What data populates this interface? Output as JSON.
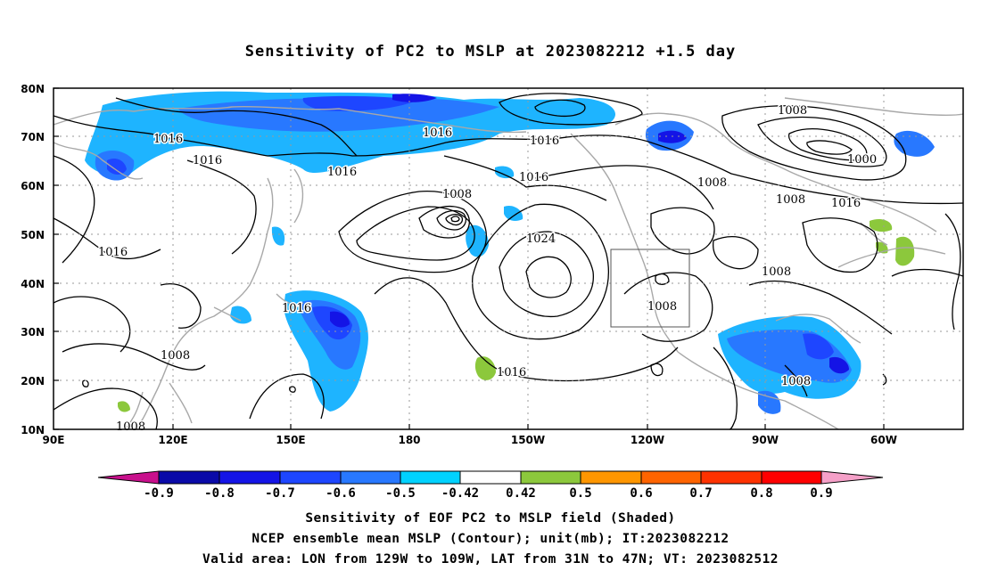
{
  "title": "Sensitivity of PC2 to MSLP at 2023082212 +1.5 day",
  "lat_labels": [
    "80N",
    "70N",
    "60N",
    "50N",
    "40N",
    "30N",
    "20N",
    "10N"
  ],
  "lon_labels": [
    "90E",
    "120E",
    "150E",
    "180",
    "150W",
    "120W",
    "90W",
    "60W"
  ],
  "contour_labels": [
    "1016",
    "1016",
    "1016",
    "1016",
    "1016",
    "1016",
    "1016",
    "1016",
    "1016",
    "1016",
    "1008",
    "1008",
    "1008",
    "1008",
    "1008",
    "1008",
    "1008",
    "1008",
    "1008",
    "1024",
    "1000"
  ],
  "colorbar": {
    "labels": [
      "-0.9",
      "-0.8",
      "-0.7",
      "-0.6",
      "-0.5",
      "-0.42",
      "0.42",
      "0.5",
      "0.6",
      "0.7",
      "0.8",
      "0.9"
    ],
    "colors": [
      "#c8108c",
      "#0a0aa8",
      "#1414e6",
      "#1e46ff",
      "#2878ff",
      "#1eb4ff",
      "#00d2ff",
      "#ffffff",
      "#8cc83c",
      "#ff9600",
      "#ff6400",
      "#ff3200",
      "#ff0000",
      "#f5a0c8"
    ]
  },
  "valid_area": {
    "lon": [
      "129W",
      "109W"
    ],
    "lat": [
      "31N",
      "47N"
    ]
  },
  "captions": [
    "Sensitivity of EOF PC2 to MSLP field (Shaded)",
    "NCEP ensemble mean MSLP (Contour); unit(mb); IT:2023082212",
    "Valid area: LON from 129W to 109W, LAT from 31N to 47N; VT: 2023082512"
  ]
}
